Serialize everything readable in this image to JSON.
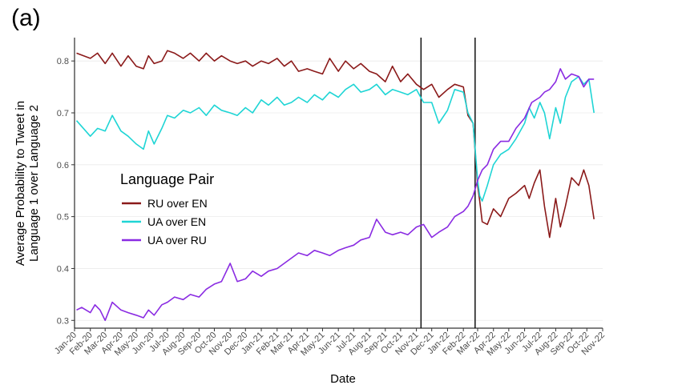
{
  "panel_label": "(a)",
  "chart_data": {
    "type": "line",
    "title": "",
    "xlabel": "Date",
    "ylabel_lines": [
      "Average Probability to Tweet in",
      "Language 1 over Language 2"
    ],
    "xlim": [
      "2020-01-01",
      "2022-11-01"
    ],
    "ylim": [
      0.285,
      0.845
    ],
    "yticks": [
      0.3,
      0.4,
      0.5,
      0.6,
      0.7,
      0.8
    ],
    "xtick_labels": [
      "Jan-20",
      "Feb-20",
      "Mar-20",
      "Apr-20",
      "May-20",
      "Jun-20",
      "Jul-20",
      "Aug-20",
      "Sep-20",
      "Oct-20",
      "Nov-20",
      "Dec-20",
      "Jan-21",
      "Feb-21",
      "Mar-21",
      "Apr-21",
      "May-21",
      "Jun-21",
      "Jul-21",
      "Aug-21",
      "Sep-21",
      "Oct-21",
      "Nov-21",
      "Dec-21",
      "Jan-22",
      "Feb-22",
      "Mar-22",
      "Apr-22",
      "May-22",
      "Jun-22",
      "Jul-22",
      "Aug-22",
      "Sep-22",
      "Oct-22",
      "Nov-22"
    ],
    "xtick_dates": [
      "2020-01-01",
      "2020-02-01",
      "2020-03-01",
      "2020-04-01",
      "2020-05-01",
      "2020-06-01",
      "2020-07-01",
      "2020-08-01",
      "2020-09-01",
      "2020-10-01",
      "2020-11-01",
      "2020-12-01",
      "2021-01-01",
      "2021-02-01",
      "2021-03-01",
      "2021-04-01",
      "2021-05-01",
      "2021-06-01",
      "2021-07-01",
      "2021-08-01",
      "2021-09-01",
      "2021-10-01",
      "2021-11-01",
      "2021-12-01",
      "2022-01-01",
      "2022-02-01",
      "2022-03-01",
      "2022-04-01",
      "2022-05-01",
      "2022-06-01",
      "2022-07-01",
      "2022-08-01",
      "2022-09-01",
      "2022-10-01",
      "2022-11-01"
    ],
    "vertical_lines": [
      "2021-11-10",
      "2022-02-24"
    ],
    "grid": "horizontal",
    "legend": {
      "title": "Language Pair",
      "placement": "center-left"
    },
    "series": [
      {
        "name": "RU over EN",
        "color": "#8b1a1a",
        "points": [
          [
            "2020-01-05",
            0.815
          ],
          [
            "2020-02-01",
            0.805
          ],
          [
            "2020-02-15",
            0.815
          ],
          [
            "2020-03-01",
            0.795
          ],
          [
            "2020-03-15",
            0.815
          ],
          [
            "2020-04-01",
            0.79
          ],
          [
            "2020-04-15",
            0.81
          ],
          [
            "2020-05-01",
            0.79
          ],
          [
            "2020-05-15",
            0.785
          ],
          [
            "2020-05-25",
            0.81
          ],
          [
            "2020-06-05",
            0.795
          ],
          [
            "2020-06-20",
            0.8
          ],
          [
            "2020-07-01",
            0.82
          ],
          [
            "2020-07-15",
            0.815
          ],
          [
            "2020-08-01",
            0.805
          ],
          [
            "2020-08-15",
            0.815
          ],
          [
            "2020-09-01",
            0.8
          ],
          [
            "2020-09-15",
            0.815
          ],
          [
            "2020-10-01",
            0.8
          ],
          [
            "2020-10-15",
            0.81
          ],
          [
            "2020-11-01",
            0.8
          ],
          [
            "2020-11-15",
            0.795
          ],
          [
            "2020-12-01",
            0.8
          ],
          [
            "2020-12-15",
            0.79
          ],
          [
            "2021-01-01",
            0.8
          ],
          [
            "2021-01-15",
            0.795
          ],
          [
            "2021-02-01",
            0.805
          ],
          [
            "2021-02-15",
            0.79
          ],
          [
            "2021-03-01",
            0.8
          ],
          [
            "2021-03-15",
            0.78
          ],
          [
            "2021-04-01",
            0.785
          ],
          [
            "2021-04-15",
            0.78
          ],
          [
            "2021-05-01",
            0.775
          ],
          [
            "2021-05-15",
            0.805
          ],
          [
            "2021-06-01",
            0.78
          ],
          [
            "2021-06-15",
            0.8
          ],
          [
            "2021-07-01",
            0.785
          ],
          [
            "2021-07-15",
            0.795
          ],
          [
            "2021-08-01",
            0.78
          ],
          [
            "2021-08-15",
            0.775
          ],
          [
            "2021-09-01",
            0.76
          ],
          [
            "2021-09-15",
            0.79
          ],
          [
            "2021-10-01",
            0.76
          ],
          [
            "2021-10-15",
            0.775
          ],
          [
            "2021-11-01",
            0.755
          ],
          [
            "2021-11-15",
            0.745
          ],
          [
            "2021-12-01",
            0.755
          ],
          [
            "2021-12-15",
            0.73
          ],
          [
            "2022-01-01",
            0.745
          ],
          [
            "2022-01-15",
            0.755
          ],
          [
            "2022-02-01",
            0.75
          ],
          [
            "2022-02-10",
            0.695
          ],
          [
            "2022-02-20",
            0.68
          ],
          [
            "2022-03-01",
            0.56
          ],
          [
            "2022-03-05",
            0.53
          ],
          [
            "2022-03-10",
            0.49
          ],
          [
            "2022-03-20",
            0.485
          ],
          [
            "2022-04-01",
            0.515
          ],
          [
            "2022-04-15",
            0.5
          ],
          [
            "2022-05-01",
            0.535
          ],
          [
            "2022-05-15",
            0.545
          ],
          [
            "2022-06-01",
            0.56
          ],
          [
            "2022-06-10",
            0.535
          ],
          [
            "2022-06-20",
            0.565
          ],
          [
            "2022-07-01",
            0.59
          ],
          [
            "2022-07-10",
            0.52
          ],
          [
            "2022-07-20",
            0.46
          ],
          [
            "2022-08-01",
            0.535
          ],
          [
            "2022-08-10",
            0.48
          ],
          [
            "2022-08-20",
            0.52
          ],
          [
            "2022-09-01",
            0.575
          ],
          [
            "2022-09-15",
            0.56
          ],
          [
            "2022-09-25",
            0.59
          ],
          [
            "2022-10-05",
            0.56
          ],
          [
            "2022-10-15",
            0.495
          ]
        ]
      },
      {
        "name": "UA over EN",
        "color": "#1fd5d5",
        "points": [
          [
            "2020-01-05",
            0.685
          ],
          [
            "2020-02-01",
            0.655
          ],
          [
            "2020-02-15",
            0.67
          ],
          [
            "2020-03-01",
            0.665
          ],
          [
            "2020-03-15",
            0.695
          ],
          [
            "2020-04-01",
            0.665
          ],
          [
            "2020-04-15",
            0.655
          ],
          [
            "2020-05-01",
            0.64
          ],
          [
            "2020-05-15",
            0.63
          ],
          [
            "2020-05-25",
            0.665
          ],
          [
            "2020-06-05",
            0.64
          ],
          [
            "2020-06-20",
            0.67
          ],
          [
            "2020-07-01",
            0.695
          ],
          [
            "2020-07-15",
            0.69
          ],
          [
            "2020-08-01",
            0.705
          ],
          [
            "2020-08-15",
            0.7
          ],
          [
            "2020-09-01",
            0.71
          ],
          [
            "2020-09-15",
            0.695
          ],
          [
            "2020-10-01",
            0.715
          ],
          [
            "2020-10-15",
            0.705
          ],
          [
            "2020-11-01",
            0.7
          ],
          [
            "2020-11-15",
            0.695
          ],
          [
            "2020-12-01",
            0.71
          ],
          [
            "2020-12-15",
            0.7
          ],
          [
            "2021-01-01",
            0.725
          ],
          [
            "2021-01-15",
            0.715
          ],
          [
            "2021-02-01",
            0.73
          ],
          [
            "2021-02-15",
            0.715
          ],
          [
            "2021-03-01",
            0.72
          ],
          [
            "2021-03-15",
            0.73
          ],
          [
            "2021-04-01",
            0.72
          ],
          [
            "2021-04-15",
            0.735
          ],
          [
            "2021-05-01",
            0.725
          ],
          [
            "2021-05-15",
            0.74
          ],
          [
            "2021-06-01",
            0.73
          ],
          [
            "2021-06-15",
            0.745
          ],
          [
            "2021-07-01",
            0.755
          ],
          [
            "2021-07-15",
            0.74
          ],
          [
            "2021-08-01",
            0.745
          ],
          [
            "2021-08-15",
            0.755
          ],
          [
            "2021-09-01",
            0.735
          ],
          [
            "2021-09-15",
            0.745
          ],
          [
            "2021-10-01",
            0.74
          ],
          [
            "2021-10-15",
            0.735
          ],
          [
            "2021-11-01",
            0.745
          ],
          [
            "2021-11-15",
            0.72
          ],
          [
            "2021-12-01",
            0.72
          ],
          [
            "2021-12-15",
            0.68
          ],
          [
            "2022-01-01",
            0.705
          ],
          [
            "2022-01-15",
            0.745
          ],
          [
            "2022-02-01",
            0.74
          ],
          [
            "2022-02-10",
            0.7
          ],
          [
            "2022-02-20",
            0.68
          ],
          [
            "2022-03-01",
            0.57
          ],
          [
            "2022-03-05",
            0.54
          ],
          [
            "2022-03-10",
            0.53
          ],
          [
            "2022-03-20",
            0.56
          ],
          [
            "2022-04-01",
            0.6
          ],
          [
            "2022-04-15",
            0.62
          ],
          [
            "2022-05-01",
            0.63
          ],
          [
            "2022-05-15",
            0.65
          ],
          [
            "2022-06-01",
            0.68
          ],
          [
            "2022-06-10",
            0.71
          ],
          [
            "2022-06-20",
            0.69
          ],
          [
            "2022-07-01",
            0.72
          ],
          [
            "2022-07-10",
            0.7
          ],
          [
            "2022-07-20",
            0.65
          ],
          [
            "2022-08-01",
            0.71
          ],
          [
            "2022-08-10",
            0.68
          ],
          [
            "2022-08-20",
            0.73
          ],
          [
            "2022-09-01",
            0.76
          ],
          [
            "2022-09-15",
            0.77
          ],
          [
            "2022-09-25",
            0.755
          ],
          [
            "2022-10-05",
            0.765
          ],
          [
            "2022-10-15",
            0.7
          ]
        ]
      },
      {
        "name": "UA over RU",
        "color": "#8a2be2",
        "points": [
          [
            "2020-01-05",
            0.32
          ],
          [
            "2020-01-15",
            0.325
          ],
          [
            "2020-02-01",
            0.315
          ],
          [
            "2020-02-10",
            0.33
          ],
          [
            "2020-02-20",
            0.32
          ],
          [
            "2020-03-01",
            0.3
          ],
          [
            "2020-03-15",
            0.335
          ],
          [
            "2020-04-01",
            0.32
          ],
          [
            "2020-04-15",
            0.315
          ],
          [
            "2020-05-01",
            0.31
          ],
          [
            "2020-05-15",
            0.305
          ],
          [
            "2020-05-25",
            0.32
          ],
          [
            "2020-06-05",
            0.31
          ],
          [
            "2020-06-20",
            0.33
          ],
          [
            "2020-07-01",
            0.335
          ],
          [
            "2020-07-15",
            0.345
          ],
          [
            "2020-08-01",
            0.34
          ],
          [
            "2020-08-15",
            0.35
          ],
          [
            "2020-09-01",
            0.345
          ],
          [
            "2020-09-15",
            0.36
          ],
          [
            "2020-10-01",
            0.37
          ],
          [
            "2020-10-15",
            0.375
          ],
          [
            "2020-11-01",
            0.41
          ],
          [
            "2020-11-15",
            0.375
          ],
          [
            "2020-12-01",
            0.38
          ],
          [
            "2020-12-15",
            0.395
          ],
          [
            "2021-01-01",
            0.385
          ],
          [
            "2021-01-15",
            0.395
          ],
          [
            "2021-02-01",
            0.4
          ],
          [
            "2021-02-15",
            0.41
          ],
          [
            "2021-03-01",
            0.42
          ],
          [
            "2021-03-15",
            0.43
          ],
          [
            "2021-04-01",
            0.425
          ],
          [
            "2021-04-15",
            0.435
          ],
          [
            "2021-05-01",
            0.43
          ],
          [
            "2021-05-15",
            0.425
          ],
          [
            "2021-06-01",
            0.435
          ],
          [
            "2021-06-15",
            0.44
          ],
          [
            "2021-07-01",
            0.445
          ],
          [
            "2021-07-15",
            0.455
          ],
          [
            "2021-08-01",
            0.46
          ],
          [
            "2021-08-15",
            0.495
          ],
          [
            "2021-09-01",
            0.47
          ],
          [
            "2021-09-15",
            0.465
          ],
          [
            "2021-10-01",
            0.47
          ],
          [
            "2021-10-15",
            0.465
          ],
          [
            "2021-11-01",
            0.48
          ],
          [
            "2021-11-15",
            0.485
          ],
          [
            "2021-12-01",
            0.46
          ],
          [
            "2021-12-15",
            0.47
          ],
          [
            "2022-01-01",
            0.48
          ],
          [
            "2022-01-15",
            0.5
          ],
          [
            "2022-02-01",
            0.51
          ],
          [
            "2022-02-10",
            0.52
          ],
          [
            "2022-02-20",
            0.54
          ],
          [
            "2022-03-01",
            0.57
          ],
          [
            "2022-03-10",
            0.59
          ],
          [
            "2022-03-20",
            0.6
          ],
          [
            "2022-04-01",
            0.63
          ],
          [
            "2022-04-15",
            0.645
          ],
          [
            "2022-05-01",
            0.645
          ],
          [
            "2022-05-15",
            0.67
          ],
          [
            "2022-06-01",
            0.69
          ],
          [
            "2022-06-15",
            0.72
          ],
          [
            "2022-07-01",
            0.73
          ],
          [
            "2022-07-10",
            0.74
          ],
          [
            "2022-07-20",
            0.745
          ],
          [
            "2022-08-01",
            0.76
          ],
          [
            "2022-08-10",
            0.785
          ],
          [
            "2022-08-20",
            0.765
          ],
          [
            "2022-09-01",
            0.775
          ],
          [
            "2022-09-15",
            0.77
          ],
          [
            "2022-09-25",
            0.75
          ],
          [
            "2022-10-05",
            0.765
          ],
          [
            "2022-10-15",
            0.765
          ]
        ]
      }
    ]
  }
}
